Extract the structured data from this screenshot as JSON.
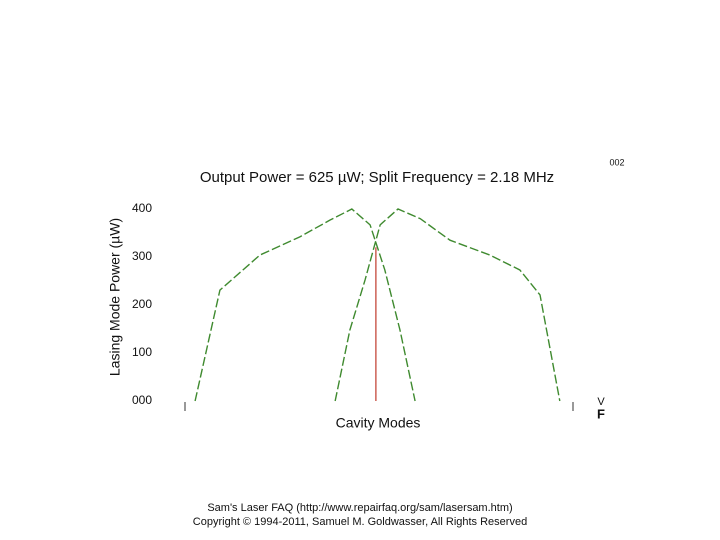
{
  "chart_data": {
    "type": "line",
    "title": "Output Power = 625 µW; Split Frequency = 2.18 MHz",
    "y_label": "Lasing Mode Power (µW)",
    "x_label": "Cavity Modes",
    "annotations": [
      "002",
      "V",
      "F"
    ],
    "xlim": [
      0,
      100
    ],
    "ylim": [
      0,
      400
    ],
    "yticks": [
      {
        "value": 0,
        "label": "000"
      },
      100,
      200,
      300,
      400
    ],
    "grid": false,
    "series": [
      {
        "color": "#3f8a2f",
        "dashed": true,
        "x": [
          2.6,
          9.0,
          19.3,
          29.6,
          37.4,
          43.0,
          47.7,
          51.5,
          55.4,
          59.3
        ],
        "values": [
          0,
          231,
          304,
          342,
          377,
          400,
          367,
          273,
          148,
          0
        ]
      },
      {
        "color": "#3f8a2f",
        "dashed": true,
        "x": [
          38.7,
          42.5,
          46.4,
          50.3,
          54.9,
          60.6,
          68.3,
          78.6,
          86.3,
          91.5,
          96.6
        ],
        "values": [
          0,
          148,
          252,
          367,
          400,
          380,
          335,
          304,
          273,
          221,
          0
        ]
      },
      {
        "color": "#c0392b",
        "dashed": false,
        "x": [
          49.2,
          49.2
        ],
        "values": [
          0,
          320
        ]
      }
    ]
  },
  "footer": [
    "Sam's Laser FAQ (http://www.repairfaq.org/sam/lasersam.htm)",
    "Copyright © 1994-2011, Samuel M. Goldwasser, All Rights Reserved"
  ]
}
